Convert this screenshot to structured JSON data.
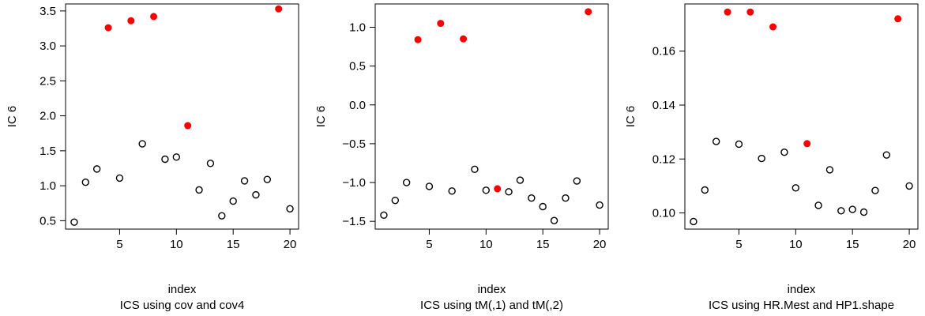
{
  "chart_data": [
    {
      "type": "scatter",
      "xlabel": "index",
      "ylabel": "IC 6",
      "subtitle": "ICS using cov and cov4",
      "xlim": [
        0.24,
        20.76
      ],
      "ylim": [
        0.38,
        3.6
      ],
      "xticks": [
        5,
        10,
        15,
        20
      ],
      "yticks": [
        0.5,
        1.0,
        1.5,
        2.0,
        2.5,
        3.0,
        3.5
      ],
      "ytick_labels": [
        "0.5",
        "1.0",
        "1.5",
        "2.0",
        "2.5",
        "3.0",
        "3.5"
      ],
      "colors": {
        "normal": "#000000",
        "highlight": "#ff0000"
      },
      "points": [
        {
          "x": 1,
          "y": 0.48,
          "highlight": false
        },
        {
          "x": 2,
          "y": 1.05,
          "highlight": false
        },
        {
          "x": 3,
          "y": 1.24,
          "highlight": false
        },
        {
          "x": 4,
          "y": 3.26,
          "highlight": true
        },
        {
          "x": 5,
          "y": 1.11,
          "highlight": false
        },
        {
          "x": 6,
          "y": 3.36,
          "highlight": true
        },
        {
          "x": 7,
          "y": 1.6,
          "highlight": false
        },
        {
          "x": 8,
          "y": 3.42,
          "highlight": true
        },
        {
          "x": 9,
          "y": 1.38,
          "highlight": false
        },
        {
          "x": 10,
          "y": 1.41,
          "highlight": false
        },
        {
          "x": 11,
          "y": 1.86,
          "highlight": true
        },
        {
          "x": 12,
          "y": 0.94,
          "highlight": false
        },
        {
          "x": 13,
          "y": 1.32,
          "highlight": false
        },
        {
          "x": 14,
          "y": 0.57,
          "highlight": false
        },
        {
          "x": 15,
          "y": 0.78,
          "highlight": false
        },
        {
          "x": 16,
          "y": 1.07,
          "highlight": false
        },
        {
          "x": 17,
          "y": 0.87,
          "highlight": false
        },
        {
          "x": 18,
          "y": 1.09,
          "highlight": false
        },
        {
          "x": 19,
          "y": 3.53,
          "highlight": true
        },
        {
          "x": 20,
          "y": 0.67,
          "highlight": false
        }
      ]
    },
    {
      "type": "scatter",
      "xlabel": "index",
      "ylabel": "IC 6",
      "subtitle": "ICS using tM(,1) and tM(,2)",
      "xlim": [
        0.24,
        20.76
      ],
      "ylim": [
        -1.6,
        1.3
      ],
      "xticks": [
        5,
        10,
        15,
        20
      ],
      "yticks": [
        -1.5,
        -1.0,
        -0.5,
        0.0,
        0.5,
        1.0
      ],
      "ytick_labels": [
        "−1.5",
        "−1.0",
        "−0.5",
        "0.0",
        "0.5",
        "1.0"
      ],
      "colors": {
        "normal": "#000000",
        "highlight": "#ff0000"
      },
      "points": [
        {
          "x": 1,
          "y": -1.42,
          "highlight": false
        },
        {
          "x": 2,
          "y": -1.23,
          "highlight": false
        },
        {
          "x": 3,
          "y": -1.0,
          "highlight": false
        },
        {
          "x": 4,
          "y": 0.84,
          "highlight": true
        },
        {
          "x": 5,
          "y": -1.05,
          "highlight": false
        },
        {
          "x": 6,
          "y": 1.05,
          "highlight": true
        },
        {
          "x": 7,
          "y": -1.11,
          "highlight": false
        },
        {
          "x": 8,
          "y": 0.85,
          "highlight": true
        },
        {
          "x": 9,
          "y": -0.83,
          "highlight": false
        },
        {
          "x": 10,
          "y": -1.1,
          "highlight": false
        },
        {
          "x": 11,
          "y": -1.08,
          "highlight": true
        },
        {
          "x": 12,
          "y": -1.12,
          "highlight": false
        },
        {
          "x": 13,
          "y": -0.97,
          "highlight": false
        },
        {
          "x": 14,
          "y": -1.2,
          "highlight": false
        },
        {
          "x": 15,
          "y": -1.31,
          "highlight": false
        },
        {
          "x": 16,
          "y": -1.49,
          "highlight": false
        },
        {
          "x": 17,
          "y": -1.2,
          "highlight": false
        },
        {
          "x": 18,
          "y": -0.98,
          "highlight": false
        },
        {
          "x": 19,
          "y": 1.2,
          "highlight": true
        },
        {
          "x": 20,
          "y": -1.29,
          "highlight": false
        }
      ]
    },
    {
      "type": "scatter",
      "xlabel": "index",
      "ylabel": "IC 6",
      "subtitle": "ICS using HR.Mest and HP1.shape",
      "xlim": [
        0.24,
        20.76
      ],
      "ylim": [
        0.094,
        0.1775
      ],
      "xticks": [
        5,
        10,
        15,
        20
      ],
      "yticks": [
        0.1,
        0.12,
        0.14,
        0.16
      ],
      "ytick_labels": [
        "0.10",
        "0.12",
        "0.14",
        "0.16"
      ],
      "colors": {
        "normal": "#000000",
        "highlight": "#ff0000"
      },
      "points": [
        {
          "x": 1,
          "y": 0.0968,
          "highlight": false
        },
        {
          "x": 2,
          "y": 0.1085,
          "highlight": false
        },
        {
          "x": 3,
          "y": 0.1265,
          "highlight": false
        },
        {
          "x": 4,
          "y": 0.1745,
          "highlight": true
        },
        {
          "x": 5,
          "y": 0.1255,
          "highlight": false
        },
        {
          "x": 6,
          "y": 0.1745,
          "highlight": true
        },
        {
          "x": 7,
          "y": 0.1202,
          "highlight": false
        },
        {
          "x": 8,
          "y": 0.169,
          "highlight": true
        },
        {
          "x": 9,
          "y": 0.1225,
          "highlight": false
        },
        {
          "x": 10,
          "y": 0.1093,
          "highlight": false
        },
        {
          "x": 11,
          "y": 0.1257,
          "highlight": true
        },
        {
          "x": 12,
          "y": 0.1028,
          "highlight": false
        },
        {
          "x": 13,
          "y": 0.116,
          "highlight": false
        },
        {
          "x": 14,
          "y": 0.1008,
          "highlight": false
        },
        {
          "x": 15,
          "y": 0.1013,
          "highlight": false
        },
        {
          "x": 16,
          "y": 0.1003,
          "highlight": false
        },
        {
          "x": 17,
          "y": 0.1083,
          "highlight": false
        },
        {
          "x": 18,
          "y": 0.1215,
          "highlight": false
        },
        {
          "x": 19,
          "y": 0.172,
          "highlight": true
        },
        {
          "x": 20,
          "y": 0.11,
          "highlight": false
        }
      ]
    }
  ]
}
